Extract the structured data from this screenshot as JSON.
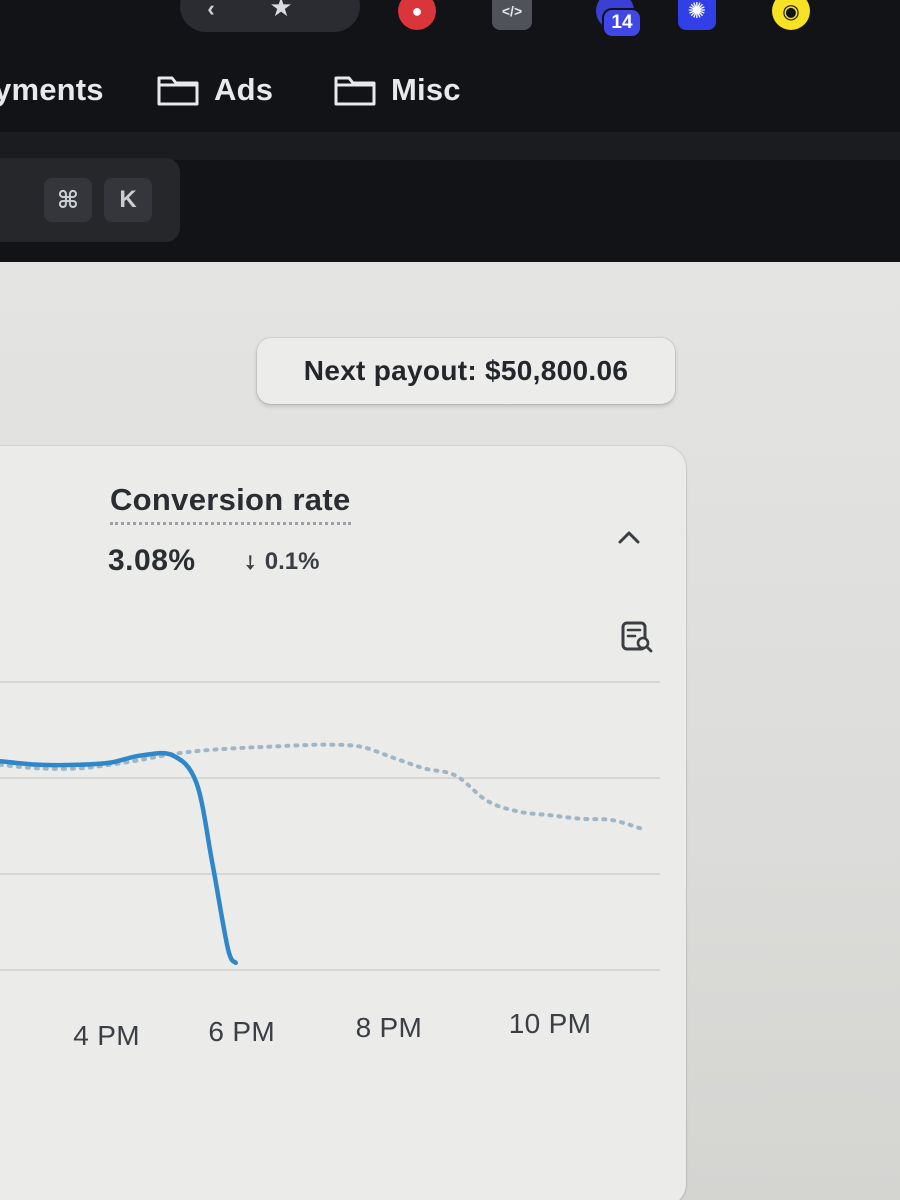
{
  "extensions": {
    "badge_count": "14",
    "icons": [
      "arrow-icon",
      "star-icon",
      "red-extension-icon",
      "code-icon",
      "purple-extension-icon",
      "flower-icon",
      "snapchat-icon"
    ]
  },
  "bookmarks": {
    "items": [
      {
        "label": "yments",
        "icon": "folder-icon"
      },
      {
        "label": "Ads",
        "icon": "folder-icon"
      },
      {
        "label": "Misc",
        "icon": "folder-icon"
      }
    ]
  },
  "search": {
    "shortcut_modifier": "⌘",
    "shortcut_key": "K"
  },
  "payout": {
    "label": "Next payout: $50,800.06"
  },
  "metric": {
    "title": "Conversion rate",
    "value": "3.08%",
    "delta": "0.1%",
    "delta_direction": "down",
    "accent_color": "#2f86c9",
    "comparison_color": "#9fb6c6"
  },
  "chart_data": {
    "type": "line",
    "categories": [
      "4 PM",
      "6 PM",
      "8 PM",
      "10 PM"
    ],
    "series": [
      {
        "style": "solid",
        "x": [
          3.0,
          3.5,
          4.0,
          4.4,
          4.8,
          5.2,
          5.5,
          5.7,
          5.9,
          6.0
        ],
        "y": [
          2.9,
          2.85,
          2.85,
          2.88,
          2.98,
          2.98,
          2.6,
          1.5,
          0.3,
          0.1
        ]
      },
      {
        "style": "dotted",
        "x": [
          3.0,
          3.5,
          4.0,
          4.4,
          4.8,
          5.2,
          5.6,
          6.0,
          6.4,
          6.8,
          7.2,
          7.6,
          8.0,
          8.4,
          8.8,
          9.2,
          9.6,
          10.0,
          10.4,
          10.8,
          11.2
        ],
        "y": [
          2.85,
          2.8,
          2.8,
          2.85,
          2.92,
          3.0,
          3.05,
          3.08,
          3.1,
          3.12,
          3.13,
          3.1,
          2.95,
          2.8,
          2.7,
          2.35,
          2.2,
          2.15,
          2.1,
          2.08,
          1.95
        ]
      }
    ],
    "xlim": [
      3.0,
      11.4
    ],
    "ylim": [
      0,
      4
    ],
    "grid": true
  }
}
